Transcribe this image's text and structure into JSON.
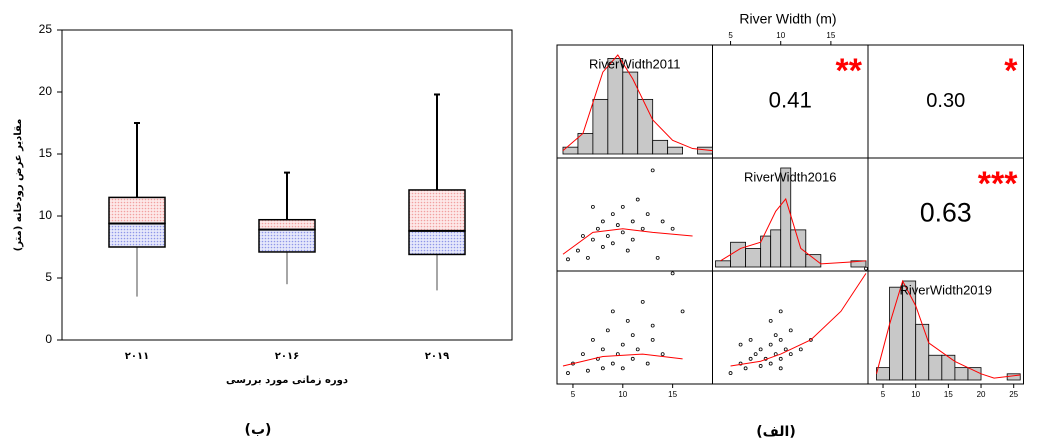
{
  "chart_data": [
    {
      "type": "box",
      "ylabel": "مقادیر عرض رودخانه (متر)",
      "xlabel": "دوره زمانی مورد بررسی",
      "caption": "(ب)",
      "categories": [
        "۲۰۱۱",
        "۲۰۱۶",
        "۲۰۱۹"
      ],
      "min": [
        3.5,
        4.5,
        4
      ],
      "q1": [
        7.5,
        7.1,
        6.9
      ],
      "median": [
        9.4,
        8.9,
        8.8
      ],
      "q3": [
        11.5,
        9.7,
        12.1
      ],
      "max": [
        17.5,
        13.5,
        19.8
      ],
      "upper_color": "#f2a0a0",
      "lower_color": "#8f96e8",
      "ylim": [
        0,
        25
      ],
      "yticks": [
        0,
        5,
        10,
        15,
        20,
        25
      ]
    },
    {
      "type": "pairs",
      "title": "River Width (m)",
      "caption": "(الف)",
      "line_color": "#ff0000",
      "bar_color": "#c8c8c8",
      "variables": [
        {
          "name": "RiverWidth2011",
          "lim": [
            3.4,
            19
          ],
          "ticks": [
            5,
            10,
            15
          ],
          "tick_side": "bottom",
          "bins": [
            4,
            5.5,
            7,
            8.5,
            10,
            11.5,
            13,
            14.5,
            16,
            17.5,
            19
          ],
          "counts": [
            1,
            3,
            8,
            14,
            12,
            8,
            2,
            1,
            0,
            1
          ],
          "density_x": [
            4,
            6,
            8,
            9.5,
            11,
            13,
            15,
            17,
            19
          ],
          "density": [
            0.5,
            3,
            12,
            14.5,
            11,
            5,
            2,
            0.8,
            0.5
          ]
        },
        {
          "name": "RiverWidth2016",
          "lim": [
            3.2,
            18.7
          ],
          "ticks": [
            5,
            10,
            15
          ],
          "tick_side": "top",
          "bins": [
            3.5,
            5,
            6.5,
            8,
            9,
            10,
            11,
            12.5,
            14,
            15.5,
            17,
            18.5
          ],
          "counts": [
            1,
            4,
            3,
            5,
            6,
            16,
            6,
            2,
            0,
            0,
            1
          ],
          "density_x": [
            4,
            6,
            8,
            9.5,
            10.5,
            12,
            14,
            17,
            18.5
          ],
          "density": [
            1,
            3,
            4,
            9,
            11,
            3,
            0.5,
            0.8,
            1
          ]
        },
        {
          "name": "RiverWidth2019",
          "lim": [
            2.7,
            26.5
          ],
          "ticks": [
            5,
            10,
            15,
            20,
            25
          ],
          "tick_side": "bottom",
          "bins": [
            4,
            6,
            8,
            10,
            12,
            14,
            16,
            18,
            20,
            22,
            24,
            26
          ],
          "counts": [
            2,
            15,
            16,
            9,
            4,
            4,
            2,
            2,
            0,
            0,
            1
          ],
          "density_x": [
            4,
            6,
            8,
            10,
            12,
            16,
            20,
            22,
            26
          ],
          "density": [
            1,
            9,
            16,
            12,
            6,
            3,
            1,
            0.3,
            0.8
          ]
        }
      ],
      "correlations": [
        {
          "pair": [
            "RiverWidth2011",
            "RiverWidth2016"
          ],
          "value": 0.41,
          "stars": "**"
        },
        {
          "pair": [
            "RiverWidth2011",
            "RiverWidth2019"
          ],
          "value": 0.3,
          "value_label": "0.30",
          "stars": "*"
        },
        {
          "pair": [
            "RiverWidth2016",
            "RiverWidth2019"
          ],
          "value": 0.63,
          "stars": "***"
        }
      ],
      "scatter": [
        {
          "x": "RiverWidth2011",
          "y": "RiverWidth2016",
          "points": [
            [
              4.5,
              4.8
            ],
            [
              5.5,
              6
            ],
            [
              6,
              8
            ],
            [
              6.5,
              5
            ],
            [
              7,
              7.5
            ],
            [
              7.5,
              9
            ],
            [
              8,
              6.5
            ],
            [
              8,
              10
            ],
            [
              8.5,
              8
            ],
            [
              9,
              11
            ],
            [
              9,
              7
            ],
            [
              9.5,
              9.5
            ],
            [
              10,
              8.5
            ],
            [
              10,
              12
            ],
            [
              10.5,
              6
            ],
            [
              11,
              10
            ],
            [
              11,
              7.5
            ],
            [
              11.5,
              13
            ],
            [
              12,
              9
            ],
            [
              12.5,
              11
            ],
            [
              13,
              17
            ],
            [
              14,
              10
            ],
            [
              15,
              9
            ],
            [
              13.5,
              5
            ],
            [
              7,
              12
            ]
          ],
          "smooth_x": [
            4,
            7,
            10,
            13,
            17
          ],
          "smooth_y": [
            5.5,
            8.5,
            9,
            8.5,
            8
          ]
        },
        {
          "x": "RiverWidth2011",
          "y": "RiverWidth2019",
          "points": [
            [
              4.5,
              5
            ],
            [
              5,
              7
            ],
            [
              6,
              9
            ],
            [
              6.5,
              5.5
            ],
            [
              7,
              12
            ],
            [
              7.5,
              8
            ],
            [
              8,
              10
            ],
            [
              8.5,
              14
            ],
            [
              9,
              7
            ],
            [
              9,
              18
            ],
            [
              9.5,
              9
            ],
            [
              10,
              11
            ],
            [
              10,
              6
            ],
            [
              10.5,
              16
            ],
            [
              11,
              8
            ],
            [
              11.5,
              10
            ],
            [
              12,
              20
            ],
            [
              12.5,
              7
            ],
            [
              13,
              12
            ],
            [
              13,
              15
            ],
            [
              14,
              9
            ],
            [
              15,
              26
            ],
            [
              16,
              18
            ],
            [
              8,
              6
            ],
            [
              11,
              13
            ]
          ],
          "smooth_x": [
            4,
            8,
            12,
            16
          ],
          "smooth_y": [
            6.5,
            8.5,
            9,
            8
          ]
        },
        {
          "x": "RiverWidth2016",
          "y": "RiverWidth2019",
          "points": [
            [
              5,
              5
            ],
            [
              6,
              7
            ],
            [
              6.5,
              6
            ],
            [
              7,
              8
            ],
            [
              7.5,
              9
            ],
            [
              8,
              6.5
            ],
            [
              8,
              10
            ],
            [
              8.5,
              8
            ],
            [
              9,
              11
            ],
            [
              9,
              7
            ],
            [
              9.5,
              9
            ],
            [
              9.5,
              13
            ],
            [
              10,
              8
            ],
            [
              10,
              12
            ],
            [
              10,
              6
            ],
            [
              10.5,
              10
            ],
            [
              11,
              9
            ],
            [
              11,
              14
            ],
            [
              12,
              10
            ],
            [
              7,
              12
            ],
            [
              6,
              11
            ],
            [
              13,
              12
            ],
            [
              9,
              16
            ],
            [
              10,
              18
            ],
            [
              18.5,
              27
            ]
          ],
          "smooth_x": [
            5,
            8,
            10,
            13,
            16,
            18.5
          ],
          "smooth_y": [
            6.5,
            7.5,
            9,
            12,
            18,
            26
          ]
        }
      ]
    }
  ]
}
